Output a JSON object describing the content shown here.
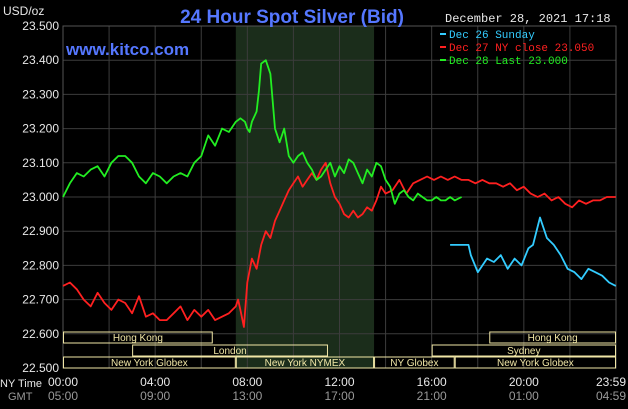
{
  "chart_data": {
    "type": "line",
    "title": "24 Hour Spot Silver (Bid)",
    "watermark": "www.kitco.com",
    "timestamp": "December 28, 2021 17:18",
    "y_unit_label": "USD/oz",
    "ylim": [
      22.5,
      23.5
    ],
    "y_ticks": [
      "23.500",
      "23.400",
      "23.300",
      "23.200",
      "23.100",
      "23.000",
      "22.900",
      "22.800",
      "22.700",
      "22.600",
      "22.500"
    ],
    "x_ticks_ny": [
      "00:00",
      "04:00",
      "08:00",
      "12:00",
      "16:00",
      "20:00",
      "23:59"
    ],
    "x_ticks_gmt": [
      "05:00",
      "09:00",
      "13:00",
      "17:00",
      "21:00",
      "01:00",
      "04:59"
    ],
    "x_axis_labels": {
      "ny": "NY Time",
      "gmt": "GMT"
    },
    "market_sessions": [
      {
        "label": "Hong Kong",
        "row": 0,
        "start": 0.0,
        "end": 6.5
      },
      {
        "label": "Hong Kong",
        "row": 0,
        "start": 18.5,
        "end": 24.0
      },
      {
        "label": "London",
        "row": 1,
        "start": 3.0,
        "end": 11.5
      },
      {
        "label": "Sydney",
        "row": 1,
        "start": 16.0,
        "end": 24.0
      },
      {
        "label": "New York Globex",
        "row": 2,
        "start": 0.0,
        "end": 7.5
      },
      {
        "label": "New York NYMEX",
        "row": 2,
        "start": 7.5,
        "end": 13.5
      },
      {
        "label": "NY Globex",
        "row": 2,
        "start": 13.5,
        "end": 17.0
      },
      {
        "label": "New York Globex",
        "row": 2,
        "start": 17.0,
        "end": 24.0
      }
    ],
    "highlight_hours": [
      7.5,
      13.5
    ],
    "colors": {
      "background": "#000000",
      "grid": "#3c3c3c",
      "title": "#5577ff",
      "watermark": "#5577ff",
      "axis_text": "#e8e8e8",
      "highlight": "#1b2d1b",
      "session_band": "#f0e6a6"
    },
    "legend_position": "top-right",
    "series": [
      {
        "name": "Dec 26 Sunday",
        "color": "#33ccff",
        "x": [
          16.8,
          17.6,
          17.7,
          18.0,
          18.4,
          18.7,
          19.0,
          19.3,
          19.6,
          19.9,
          20.2,
          20.4,
          20.7,
          21.0,
          21.3,
          21.6,
          21.9,
          22.2,
          22.5,
          22.8,
          23.1,
          23.4,
          23.7,
          23.99
        ],
        "y": [
          22.86,
          22.86,
          22.83,
          22.78,
          22.82,
          22.81,
          22.83,
          22.79,
          22.82,
          22.8,
          22.85,
          22.86,
          22.94,
          22.88,
          22.86,
          22.83,
          22.79,
          22.78,
          22.76,
          22.79,
          22.78,
          22.77,
          22.75,
          22.74
        ]
      },
      {
        "name": "Dec 27 NY close 23.050",
        "color": "#ff2020",
        "x": [
          0.0,
          0.3,
          0.6,
          0.9,
          1.2,
          1.5,
          1.8,
          2.1,
          2.4,
          2.7,
          3.0,
          3.3,
          3.6,
          3.9,
          4.2,
          4.5,
          4.8,
          5.1,
          5.4,
          5.7,
          6.0,
          6.3,
          6.6,
          6.9,
          7.2,
          7.5,
          7.6,
          7.7,
          7.85,
          8.0,
          8.2,
          8.4,
          8.6,
          8.8,
          9.0,
          9.2,
          9.4,
          9.6,
          9.8,
          10.0,
          10.2,
          10.4,
          10.6,
          10.8,
          11.0,
          11.2,
          11.4,
          11.6,
          11.8,
          12.0,
          12.2,
          12.4,
          12.6,
          12.8,
          13.0,
          13.2,
          13.4,
          13.6,
          13.8,
          14.0,
          14.3,
          14.6,
          14.9,
          15.2,
          15.5,
          15.8,
          16.1,
          16.4,
          16.7,
          17.0,
          17.3,
          17.6,
          17.9,
          18.2,
          18.5,
          18.8,
          19.1,
          19.4,
          19.7,
          20.0,
          20.3,
          20.6,
          20.9,
          21.2,
          21.5,
          21.8,
          22.1,
          22.4,
          22.7,
          23.0,
          23.3,
          23.6,
          23.99
        ],
        "y": [
          22.74,
          22.75,
          22.73,
          22.7,
          22.68,
          22.72,
          22.69,
          22.67,
          22.7,
          22.69,
          22.66,
          22.71,
          22.65,
          22.66,
          22.64,
          22.64,
          22.66,
          22.68,
          22.64,
          22.67,
          22.65,
          22.67,
          22.64,
          22.65,
          22.66,
          22.68,
          22.7,
          22.67,
          22.62,
          22.75,
          22.82,
          22.79,
          22.86,
          22.9,
          22.88,
          22.93,
          22.96,
          22.99,
          23.02,
          23.04,
          23.06,
          23.03,
          23.05,
          23.07,
          23.05,
          23.08,
          23.1,
          23.04,
          23.0,
          22.98,
          22.95,
          22.94,
          22.96,
          22.94,
          22.95,
          22.97,
          22.96,
          22.99,
          23.03,
          23.01,
          23.02,
          23.05,
          23.01,
          23.04,
          23.05,
          23.06,
          23.05,
          23.06,
          23.05,
          23.06,
          23.05,
          23.05,
          23.04,
          23.05,
          23.04,
          23.04,
          23.03,
          23.04,
          23.02,
          23.03,
          23.01,
          23.0,
          23.01,
          22.99,
          23.0,
          22.98,
          22.97,
          22.99,
          22.98,
          22.99,
          22.99,
          23.0,
          23.0
        ]
      },
      {
        "name": "Dec 28 Last 23.000",
        "color": "#22ee22",
        "x": [
          0.0,
          0.3,
          0.6,
          0.9,
          1.2,
          1.5,
          1.8,
          2.1,
          2.4,
          2.7,
          3.0,
          3.3,
          3.6,
          3.9,
          4.2,
          4.5,
          4.8,
          5.1,
          5.4,
          5.7,
          6.0,
          6.3,
          6.6,
          6.9,
          7.2,
          7.5,
          7.7,
          7.9,
          8.0,
          8.1,
          8.2,
          8.4,
          8.5,
          8.6,
          8.8,
          9.0,
          9.2,
          9.4,
          9.6,
          9.8,
          10.0,
          10.2,
          10.4,
          10.6,
          10.8,
          11.0,
          11.2,
          11.4,
          11.6,
          11.8,
          12.0,
          12.2,
          12.4,
          12.6,
          12.8,
          13.0,
          13.2,
          13.4,
          13.6,
          13.8,
          14.0,
          14.2,
          14.4,
          14.6,
          14.8,
          15.0,
          15.2,
          15.4,
          15.6,
          15.8,
          16.0,
          16.2,
          16.4,
          16.6,
          16.8,
          17.0,
          17.3
        ],
        "y": [
          23.0,
          23.04,
          23.07,
          23.06,
          23.08,
          23.09,
          23.06,
          23.1,
          23.12,
          23.12,
          23.1,
          23.06,
          23.04,
          23.07,
          23.06,
          23.04,
          23.06,
          23.07,
          23.06,
          23.1,
          23.12,
          23.18,
          23.15,
          23.2,
          23.19,
          23.22,
          23.23,
          23.22,
          23.2,
          23.19,
          23.22,
          23.25,
          23.31,
          23.39,
          23.4,
          23.36,
          23.2,
          23.16,
          23.2,
          23.12,
          23.1,
          23.12,
          23.13,
          23.1,
          23.08,
          23.05,
          23.06,
          23.08,
          23.1,
          23.06,
          23.09,
          23.07,
          23.11,
          23.1,
          23.07,
          23.04,
          23.08,
          23.06,
          23.1,
          23.09,
          23.05,
          23.03,
          22.98,
          23.01,
          23.02,
          23.0,
          22.99,
          23.01,
          23.0,
          22.99,
          22.99,
          23.0,
          22.99,
          22.99,
          23.0,
          22.99,
          23.0
        ]
      }
    ]
  }
}
